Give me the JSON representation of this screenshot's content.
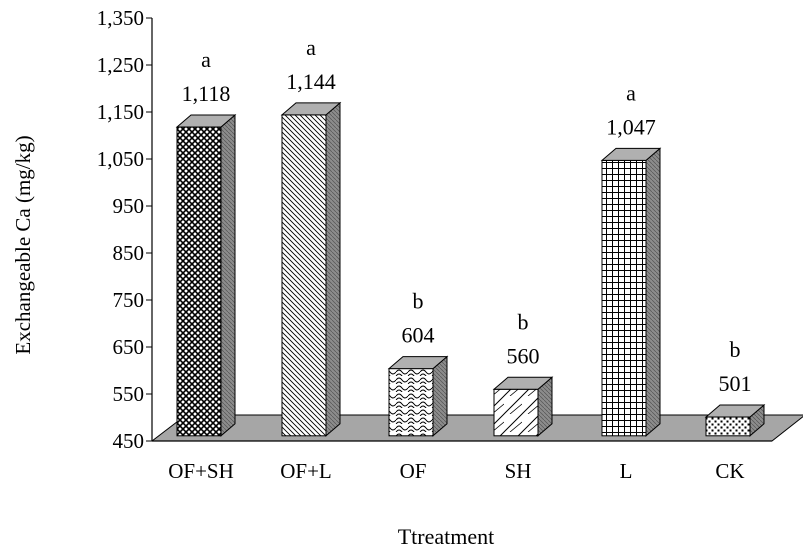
{
  "chart_data": {
    "type": "bar",
    "style": "3d",
    "title": "",
    "xlabel": "Ttreatment",
    "ylabel": "Exchangeable Ca (mg/kg)",
    "ylim": [
      450,
      1350
    ],
    "yticks": [
      450,
      550,
      650,
      750,
      850,
      950,
      1050,
      1150,
      1250,
      1350
    ],
    "ytick_labels": [
      "450",
      "550",
      "650",
      "750",
      "850",
      "950",
      "1,050",
      "1,150",
      "1,250",
      "1,350"
    ],
    "grid": false,
    "legend": "none",
    "categories": [
      "OF+SH",
      "OF+L",
      "OF",
      "SH",
      "L",
      "CK"
    ],
    "values": [
      1118,
      1144,
      604,
      560,
      1047,
      501
    ],
    "value_labels": [
      "1,118",
      "1,144",
      "604",
      "560",
      "1,047",
      "501"
    ],
    "significance_letters": [
      "a",
      "a",
      "b",
      "b",
      "a",
      "b"
    ],
    "patterns": [
      "crosshatch-dense",
      "diagonal-lines",
      "wave",
      "diagonal-cross",
      "grid",
      "dots"
    ],
    "floor_color": "#a6a6a6",
    "side_color": "#8c8c8c",
    "top_color": "#b0b0b0"
  }
}
